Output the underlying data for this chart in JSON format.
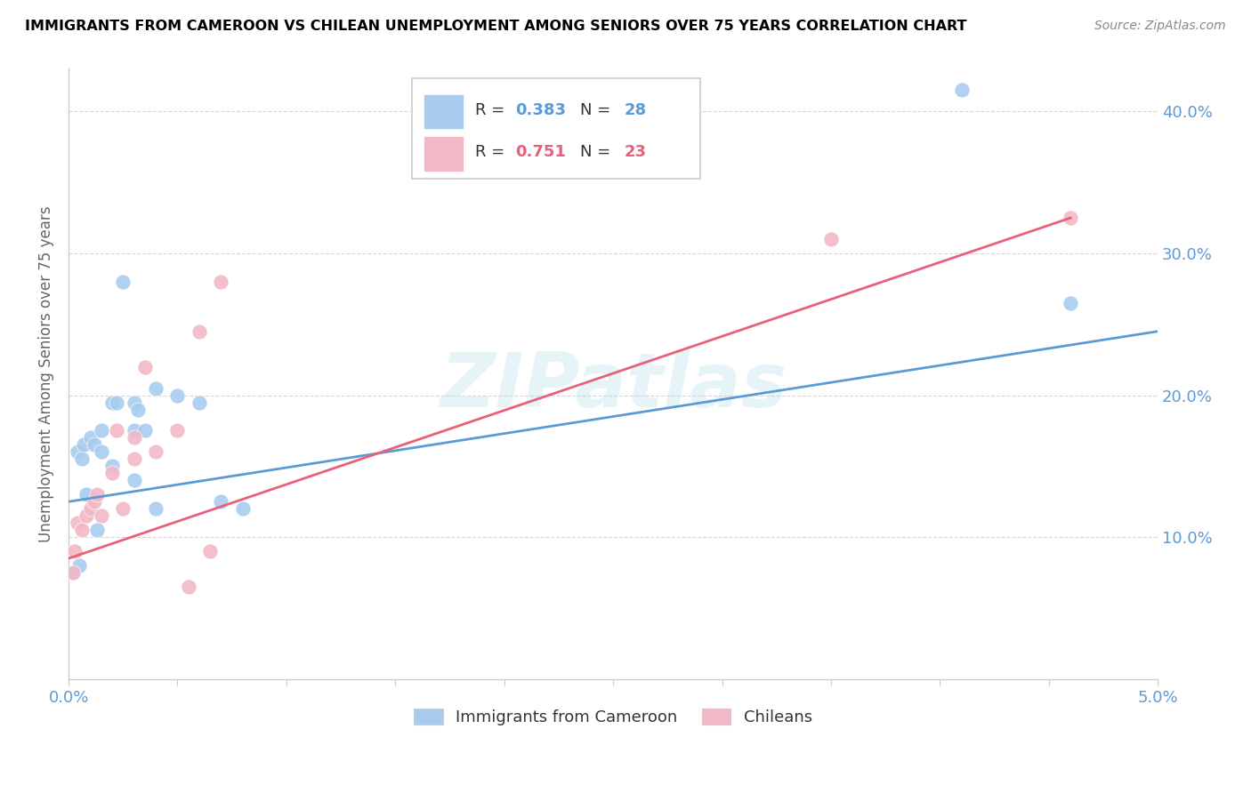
{
  "title": "IMMIGRANTS FROM CAMEROON VS CHILEAN UNEMPLOYMENT AMONG SENIORS OVER 75 YEARS CORRELATION CHART",
  "source": "Source: ZipAtlas.com",
  "ylabel": "Unemployment Among Seniors over 75 years",
  "xlim": [
    0.0,
    0.05
  ],
  "ylim": [
    0.0,
    0.43
  ],
  "yticks": [
    0.1,
    0.2,
    0.3,
    0.4
  ],
  "ytick_labels": [
    "10.0%",
    "20.0%",
    "30.0%",
    "40.0%"
  ],
  "xticks": [
    0.0,
    0.005,
    0.01,
    0.015,
    0.02,
    0.025,
    0.03,
    0.035,
    0.04,
    0.045,
    0.05
  ],
  "xtick_labels": [
    "0.0%",
    "",
    "",
    "",
    "",
    "",
    "",
    "",
    "",
    "",
    "5.0%"
  ],
  "blue_color": "#A8CCEE",
  "pink_color": "#F2B8C6",
  "blue_line_color": "#5B9BD5",
  "pink_line_color": "#E8607A",
  "watermark": "ZIPatlas",
  "legend_R1": "0.383",
  "legend_N1": "28",
  "legend_R2": "0.751",
  "legend_N2": "23",
  "blue_scatter_x": [
    0.0002,
    0.0004,
    0.0005,
    0.0006,
    0.0007,
    0.0008,
    0.001,
    0.0012,
    0.0013,
    0.0015,
    0.0015,
    0.002,
    0.002,
    0.0022,
    0.0025,
    0.003,
    0.003,
    0.003,
    0.0032,
    0.0035,
    0.004,
    0.004,
    0.005,
    0.006,
    0.007,
    0.008,
    0.041,
    0.046
  ],
  "blue_scatter_y": [
    0.075,
    0.16,
    0.08,
    0.155,
    0.165,
    0.13,
    0.17,
    0.165,
    0.105,
    0.175,
    0.16,
    0.195,
    0.15,
    0.195,
    0.28,
    0.175,
    0.195,
    0.14,
    0.19,
    0.175,
    0.205,
    0.12,
    0.2,
    0.195,
    0.125,
    0.12,
    0.415,
    0.265
  ],
  "pink_scatter_x": [
    0.0002,
    0.0003,
    0.0004,
    0.0006,
    0.0008,
    0.001,
    0.0012,
    0.0013,
    0.0015,
    0.002,
    0.0022,
    0.0025,
    0.003,
    0.003,
    0.0035,
    0.004,
    0.005,
    0.0055,
    0.006,
    0.0065,
    0.007,
    0.035,
    0.046
  ],
  "pink_scatter_y": [
    0.075,
    0.09,
    0.11,
    0.105,
    0.115,
    0.12,
    0.125,
    0.13,
    0.115,
    0.145,
    0.175,
    0.12,
    0.155,
    0.17,
    0.22,
    0.16,
    0.175,
    0.065,
    0.245,
    0.09,
    0.28,
    0.31,
    0.325
  ],
  "blue_line_x": [
    0.0,
    0.05
  ],
  "blue_line_y": [
    0.125,
    0.245
  ],
  "pink_line_x": [
    0.0,
    0.046
  ],
  "pink_line_y": [
    0.085,
    0.325
  ]
}
